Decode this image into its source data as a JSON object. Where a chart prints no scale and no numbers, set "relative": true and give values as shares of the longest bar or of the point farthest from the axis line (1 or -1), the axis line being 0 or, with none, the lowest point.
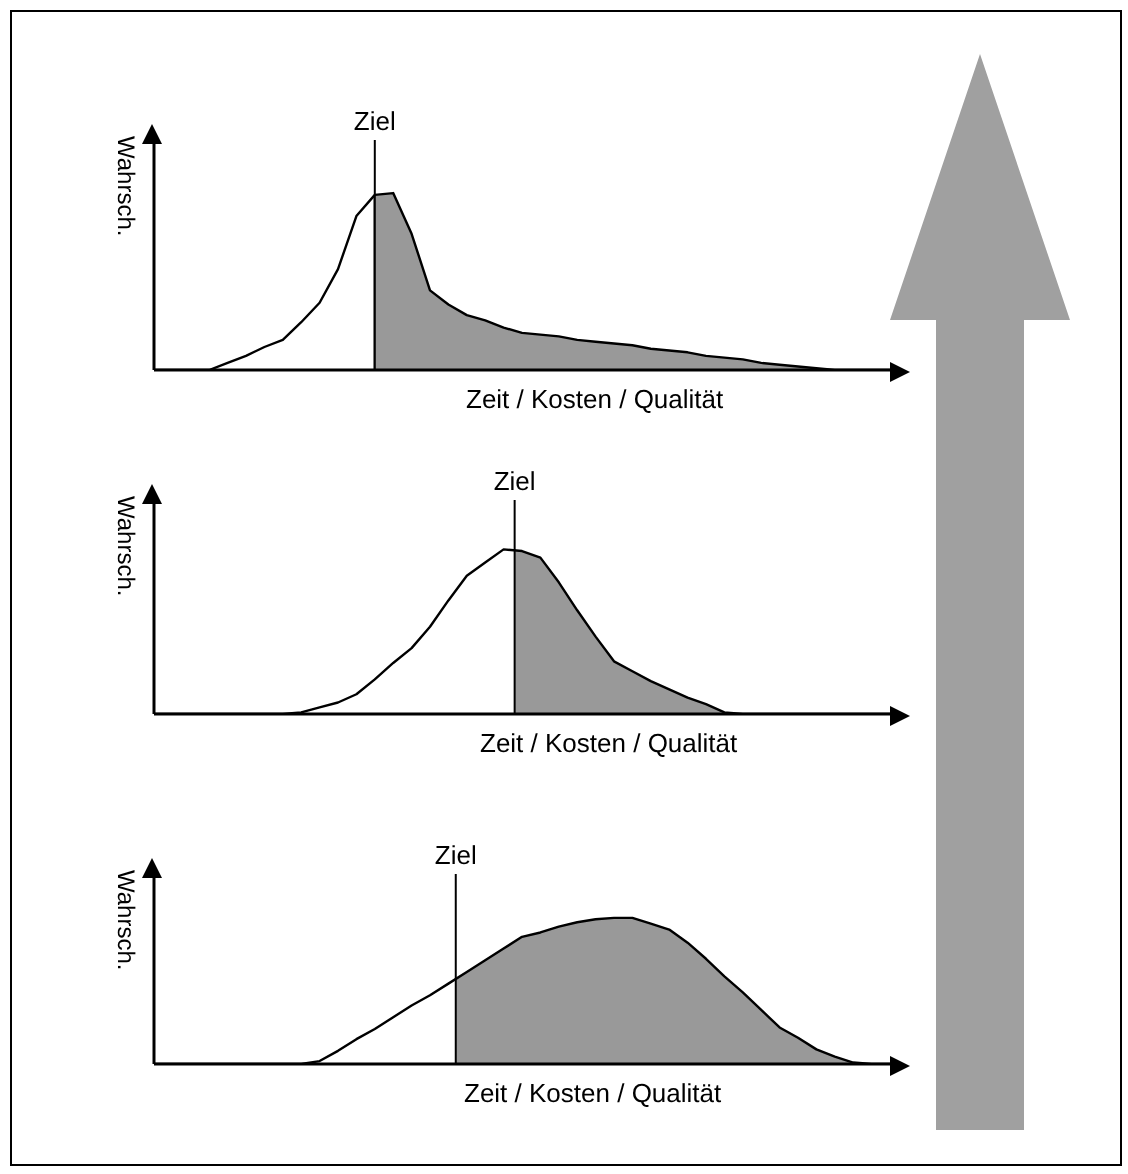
{
  "chart_data": [
    {
      "type": "area",
      "ylabel": "Wahrsch.",
      "xlabel": "Zeit / Kosten / Qualität",
      "relative": true,
      "categories": [
        null,
        null,
        null,
        null,
        null,
        null,
        null,
        null,
        null,
        null,
        null,
        null,
        null,
        null,
        null,
        null,
        null,
        null,
        null,
        null,
        null,
        null,
        null,
        null,
        null,
        null,
        null,
        null,
        null,
        null,
        null,
        null,
        null,
        null,
        null,
        null,
        null,
        null,
        null,
        null,
        null
      ],
      "series": [
        {
          "color": "#999999",
          "values": [
            0,
            0,
            0,
            0,
            0.04,
            0.08,
            0.13,
            0.17,
            0.27,
            0.38,
            0.57,
            0.87,
            0.99,
            1,
            0.77,
            0.45,
            0.37,
            0.31,
            0.28,
            0.24,
            0.21,
            0.2,
            0.19,
            0.17,
            0.16,
            0.15,
            0.14,
            0.12,
            0.11,
            0.1,
            0.08,
            0.07,
            0.06,
            0.04,
            0.03,
            0.02,
            0.01,
            0,
            0,
            0,
            0
          ]
        }
      ],
      "annotations": [
        "Ziel"
      ]
    },
    {
      "type": "area",
      "ylabel": "Wahrsch.",
      "xlabel": "Zeit / Kosten / Qualität",
      "relative": true,
      "categories": [
        null,
        null,
        null,
        null,
        null,
        null,
        null,
        null,
        null,
        null,
        null,
        null,
        null,
        null,
        null,
        null,
        null,
        null,
        null,
        null,
        null,
        null,
        null,
        null,
        null,
        null,
        null,
        null,
        null,
        null,
        null,
        null,
        null,
        null,
        null,
        null,
        null,
        null,
        null,
        null,
        null
      ],
      "series": [
        {
          "color": "#999999",
          "values": [
            0,
            0,
            0,
            0,
            0,
            0,
            0,
            0,
            0.01,
            0.04,
            0.07,
            0.12,
            0.21,
            0.31,
            0.4,
            0.53,
            0.69,
            0.84,
            0.92,
            1,
            0.99,
            0.95,
            0.8,
            0.63,
            0.47,
            0.32,
            0.26,
            0.2,
            0.15,
            0.1,
            0.06,
            0.01,
            0,
            0,
            0,
            0,
            0,
            0,
            0,
            0,
            0
          ]
        }
      ],
      "annotations": [
        "Ziel"
      ]
    },
    {
      "type": "area",
      "ylabel": "Wahrsch.",
      "xlabel": "Zeit / Kosten / Qualität",
      "relative": true,
      "categories": [
        null,
        null,
        null,
        null,
        null,
        null,
        null,
        null,
        null,
        null,
        null,
        null,
        null,
        null,
        null,
        null,
        null,
        null,
        null,
        null,
        null,
        null,
        null,
        null,
        null,
        null,
        null,
        null,
        null,
        null,
        null,
        null,
        null,
        null,
        null,
        null,
        null,
        null,
        null,
        null,
        null
      ],
      "series": [
        {
          "color": "#999999",
          "values": [
            0,
            0,
            0,
            0,
            0,
            0,
            0,
            0,
            0,
            0.02,
            0.09,
            0.17,
            0.24,
            0.32,
            0.4,
            0.47,
            0.55,
            0.63,
            0.71,
            0.79,
            0.87,
            0.9,
            0.94,
            0.97,
            0.99,
            1,
            1,
            0.96,
            0.92,
            0.83,
            0.72,
            0.6,
            0.49,
            0.37,
            0.25,
            0.18,
            0.1,
            0.05,
            0.01,
            0,
            0
          ]
        }
      ],
      "annotations": [
        "Ziel"
      ]
    }
  ]
}
